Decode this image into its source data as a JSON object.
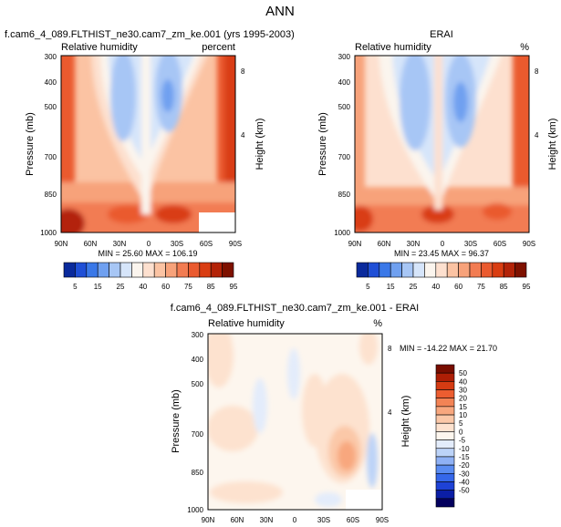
{
  "figure_title": "ANN",
  "colors": {
    "positive_scale": [
      "#0a2a9c",
      "#1f4fd6",
      "#3a78e8",
      "#6fa0f0",
      "#a7c6f5",
      "#d6e5fa",
      "#fbf5ee",
      "#fde0cf",
      "#fbc3a3",
      "#f7a27a",
      "#f27c52",
      "#ea5a2f",
      "#d93d12",
      "#b32308",
      "#7e1100"
    ],
    "diff_scale": [
      "#04005e",
      "#0b1ea6",
      "#1e42d6",
      "#3567ea",
      "#5a8cf2",
      "#8fb1f5",
      "#bcd3f8",
      "#e3ecfb",
      "#fdf6ee",
      "#fde2cf",
      "#fbc8a8",
      "#f8a77e",
      "#f38355",
      "#ec5d30",
      "#d53b12",
      "#ad1e05",
      "#780d00"
    ]
  },
  "chart_data": [
    {
      "type": "heatmap",
      "title": "f.cam6_4_089.FLTHIST_ne30.cam7_zm_ke.001 (yrs 1995-2003)",
      "left_label": "Relative humidity",
      "right_label": "percent",
      "ylabel": "Pressure (mb)",
      "ylabel_right": "Height (km)",
      "x_ticks": [
        "90N",
        "60N",
        "30N",
        "0",
        "30S",
        "60S",
        "90S"
      ],
      "y_ticks": [
        "300",
        "400",
        "500",
        "700",
        "850",
        "1000"
      ],
      "y_ticks_right": [
        "8",
        "4"
      ],
      "x": [
        90,
        60,
        30,
        0,
        -30,
        -60,
        -90
      ],
      "ylim": [
        1000,
        300
      ],
      "stats": "MIN =  25.60   MAX = 106.19",
      "colorbar_labels": [
        "5",
        "15",
        "25",
        "40",
        "60",
        "75",
        "85",
        "95"
      ]
    },
    {
      "type": "heatmap",
      "title": "ERAI",
      "left_label": "Relative humidity",
      "right_label": "%",
      "ylabel": "Pressure (mb)",
      "ylabel_right": "Height (km)",
      "x_ticks": [
        "90N",
        "60N",
        "30N",
        "0",
        "30S",
        "60S",
        "90S"
      ],
      "y_ticks": [
        "300",
        "400",
        "500",
        "700",
        "850",
        "1000"
      ],
      "y_ticks_right": [
        "8",
        "4"
      ],
      "x": [
        90,
        60,
        30,
        0,
        -30,
        -60,
        -90
      ],
      "ylim": [
        1000,
        300
      ],
      "stats": "MIN =  23.45   MAX =  96.37",
      "colorbar_labels": [
        "5",
        "15",
        "25",
        "40",
        "60",
        "75",
        "85",
        "95"
      ]
    },
    {
      "type": "heatmap",
      "title": "f.cam6_4_089.FLTHIST_ne30.cam7_zm_ke.001 - ERAI",
      "left_label": "Relative humidity",
      "right_label": "%",
      "ylabel": "Pressure (mb)",
      "ylabel_right": "Height (km)",
      "x_ticks": [
        "90N",
        "60N",
        "30N",
        "0",
        "30S",
        "60S",
        "90S"
      ],
      "y_ticks": [
        "300",
        "400",
        "500",
        "700",
        "850",
        "1000"
      ],
      "y_ticks_right": [
        "8",
        "4"
      ],
      "x": [
        90,
        60,
        30,
        0,
        -30,
        -60,
        -90
      ],
      "ylim": [
        1000,
        300
      ],
      "stats": "MIN = -14.22   MAX =  21.70",
      "colorbar_labels": [
        "50",
        "40",
        "30",
        "20",
        "15",
        "10",
        "5",
        "0",
        "-5",
        "-10",
        "-15",
        "-20",
        "-30",
        "-40",
        "-50"
      ]
    }
  ]
}
